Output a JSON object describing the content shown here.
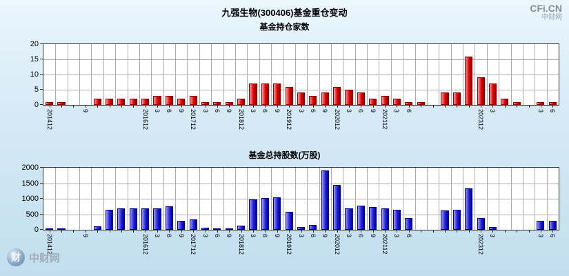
{
  "page": {
    "title": "九强生物(300406)基金重仓变动",
    "watermark": "CFi.CN",
    "watermark_sub": "中财网",
    "footer_logo_glyph": "财",
    "footer_logo_text": "中财网"
  },
  "colors": {
    "bar_red": "#e60000",
    "bar_blue": "#2020dd",
    "grid": "#ababab",
    "plot_background": "#ffffff",
    "page_background": "#d6eaf6"
  },
  "chart_data": [
    {
      "type": "bar",
      "title": "基金持仓家数",
      "xlabel": "",
      "ylabel": "",
      "ylim": [
        0,
        20
      ],
      "yticks": [
        0,
        5,
        10,
        15,
        20
      ],
      "grid": true,
      "legend": "none",
      "bar_colors": {
        "light": "#ff9999",
        "main": "#e60000",
        "dark": "#8d0000"
      },
      "categories": [
        "2014-12",
        "2015-03",
        "2015-06",
        "2015-09",
        "2015-12",
        "2016-03",
        "2016-06",
        "2016-09",
        "2016-12",
        "2017-03",
        "2017-06",
        "2017-09",
        "2017-12",
        "2018-03",
        "2018-06",
        "2018-09",
        "2018-12",
        "2019-03",
        "2019-06",
        "2019-09",
        "2019-12",
        "2020-03",
        "2020-06",
        "2020-09",
        "2020-12",
        "2021-03",
        "2021-06",
        "2021-09",
        "2021-12",
        "2022-03",
        "2022-06",
        "2022-09",
        "2022-12",
        "2023-03",
        "2023-06",
        "2023-09",
        "2023-12",
        "2024-03",
        "2024-06",
        "2024-09",
        "2024-12",
        "2025-03",
        "2025-06"
      ],
      "tick_labels": [
        "201412",
        "",
        "",
        "9",
        "",
        "",
        "",
        "",
        "201612",
        "3",
        "6",
        "9",
        "201712",
        "3",
        "6",
        "9",
        "201812",
        "3",
        "6",
        "9",
        "201912",
        "3",
        "6",
        "9",
        "202012",
        "3",
        "6",
        "9",
        "202112",
        "3",
        "6",
        "",
        "",
        "",
        "",
        "",
        "202312",
        "3",
        "",
        "",
        "",
        "3",
        "6"
      ],
      "values": [
        1,
        1,
        0,
        0,
        2,
        2,
        2,
        2,
        2,
        3,
        3,
        2,
        3,
        1,
        1,
        1,
        2,
        7,
        7,
        7,
        6,
        4,
        3,
        4,
        6,
        5,
        4,
        2,
        3,
        2,
        1,
        1,
        0,
        4,
        4,
        16,
        9,
        7,
        2,
        1,
        0,
        1,
        1
      ]
    },
    {
      "type": "bar",
      "title": "基金总持股数(万股)",
      "xlabel": "",
      "ylabel": "",
      "ylim": [
        0,
        2000
      ],
      "yticks": [
        0,
        500,
        1000,
        1500,
        2000
      ],
      "grid": true,
      "legend": "none",
      "bar_colors": {
        "light": "#9999ff",
        "main": "#2020dd",
        "dark": "#000090"
      },
      "categories": [
        "2014-12",
        "2015-03",
        "2015-06",
        "2015-09",
        "2015-12",
        "2016-03",
        "2016-06",
        "2016-09",
        "2016-12",
        "2017-03",
        "2017-06",
        "2017-09",
        "2017-12",
        "2018-03",
        "2018-06",
        "2018-09",
        "2018-12",
        "2019-03",
        "2019-06",
        "2019-09",
        "2019-12",
        "2020-03",
        "2020-06",
        "2020-09",
        "2020-12",
        "2021-03",
        "2021-06",
        "2021-09",
        "2021-12",
        "2022-03",
        "2022-06",
        "2022-09",
        "2022-12",
        "2023-03",
        "2023-06",
        "2023-09",
        "2023-12",
        "2024-03",
        "2024-06",
        "2024-09",
        "2024-12",
        "2025-03",
        "2025-06"
      ],
      "tick_labels": [
        "201412",
        "",
        "",
        "9",
        "",
        "",
        "",
        "",
        "201612",
        "3",
        "6",
        "9",
        "201712",
        "3",
        "6",
        "9",
        "201812",
        "3",
        "6",
        "9",
        "201912",
        "3",
        "6",
        "9",
        "202012",
        "3",
        "6",
        "9",
        "202112",
        "3",
        "6",
        "",
        "",
        "",
        "",
        "",
        "202312",
        "3",
        "",
        "",
        "",
        "3",
        "6"
      ],
      "values": [
        20,
        40,
        0,
        0,
        120,
        650,
        680,
        680,
        690,
        700,
        750,
        280,
        340,
        60,
        50,
        40,
        130,
        980,
        1020,
        1040,
        570,
        100,
        160,
        1920,
        1450,
        690,
        770,
        740,
        700,
        650,
        380,
        0,
        0,
        620,
        640,
        1330,
        380,
        80,
        0,
        0,
        0,
        280,
        290
      ]
    }
  ]
}
